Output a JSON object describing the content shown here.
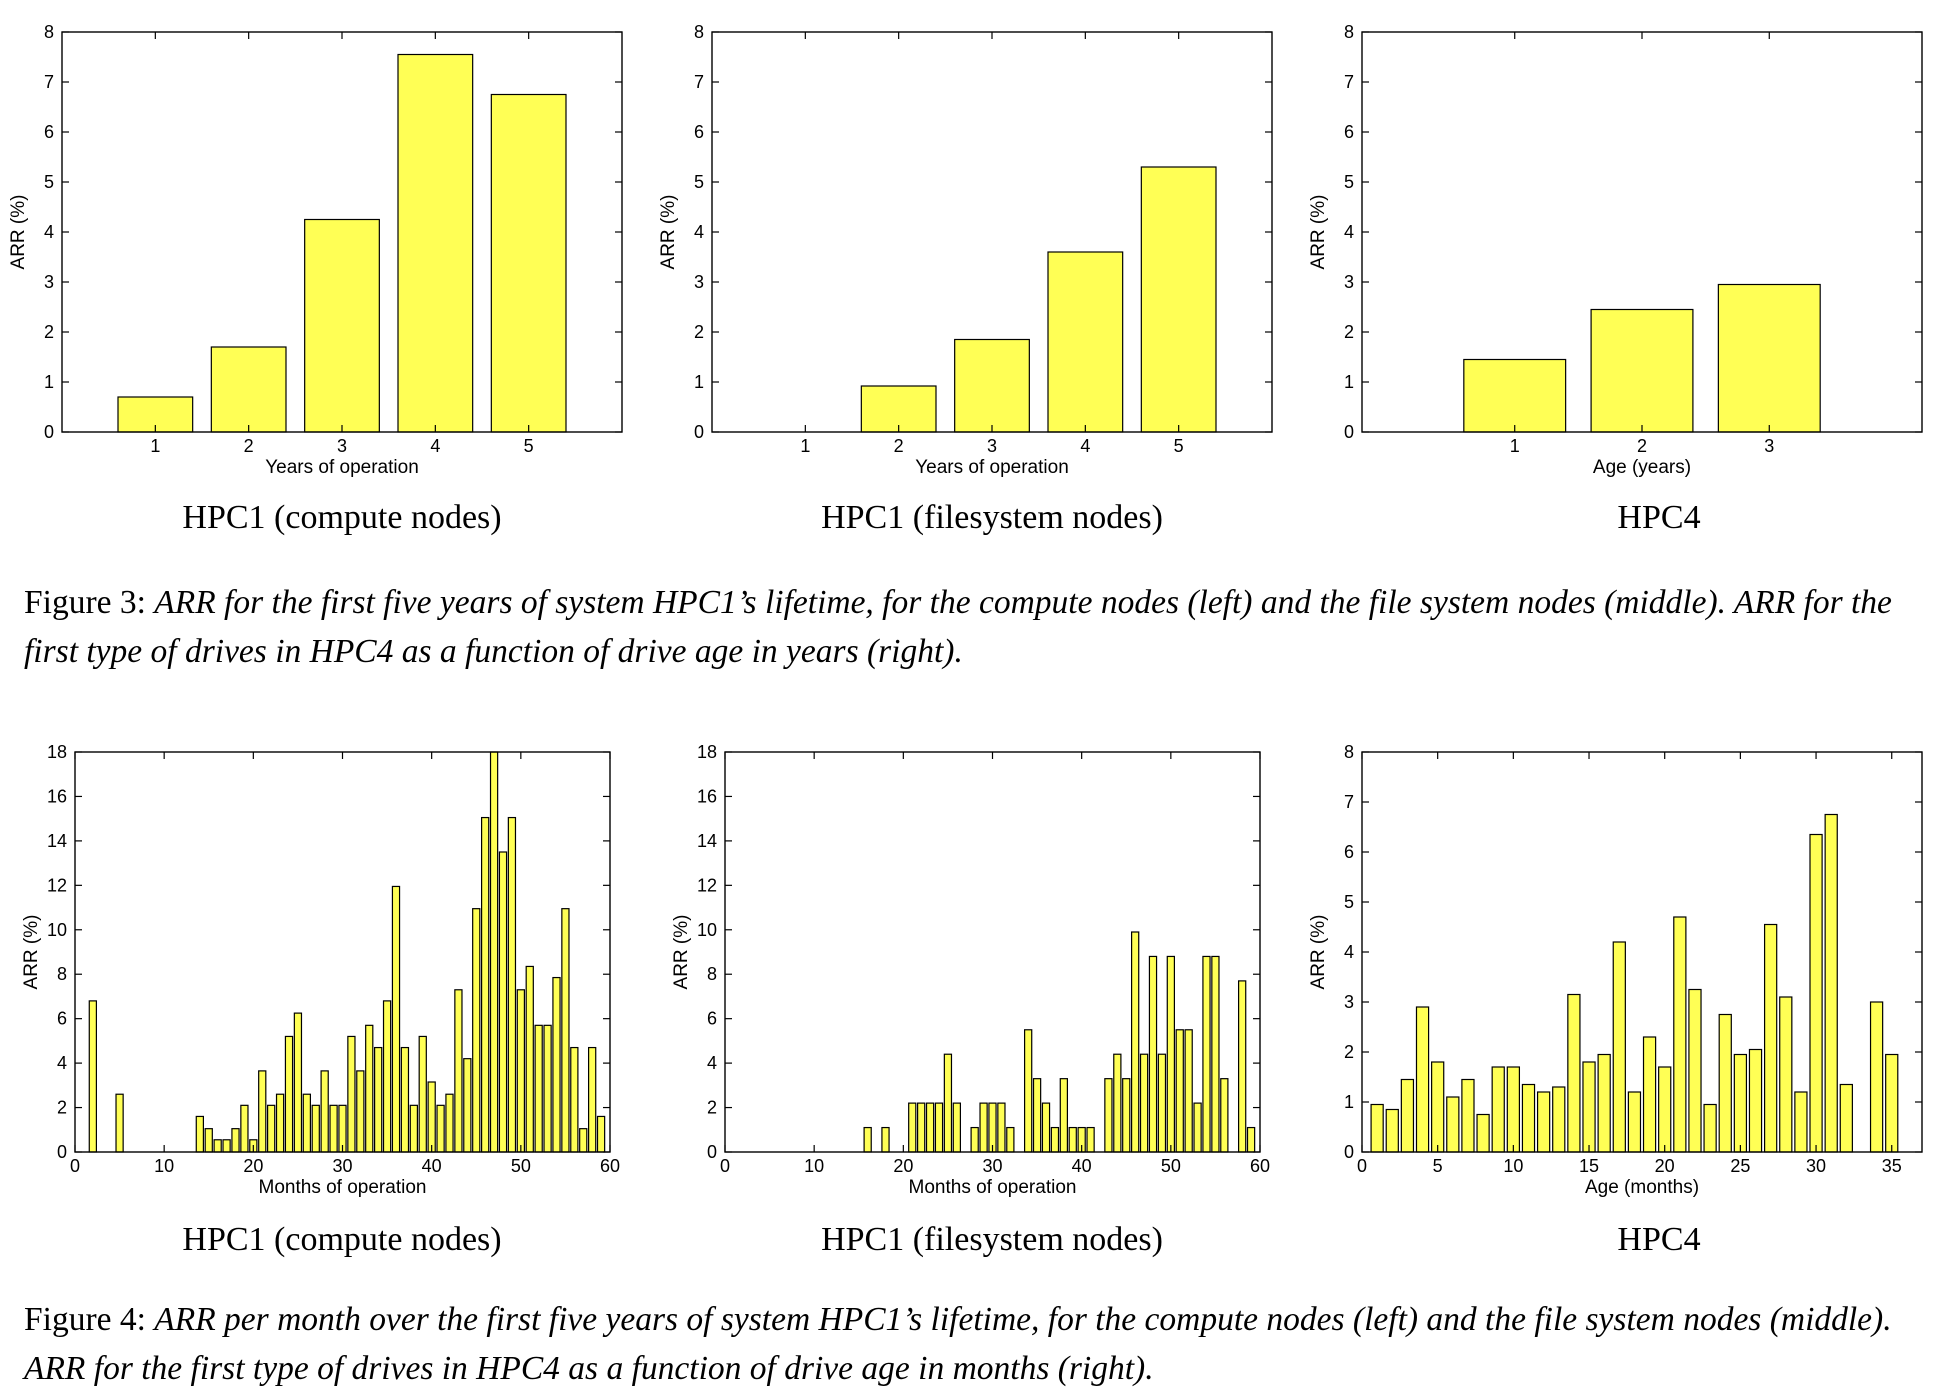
{
  "figures": [
    {
      "panels": [
        {
          "title": "HPC1 (compute nodes)",
          "chart_data": {
            "type": "bar",
            "x": [
              1,
              2,
              3,
              4,
              5
            ],
            "values": [
              0.7,
              1.7,
              4.25,
              7.55,
              6.75
            ],
            "xlabel": "Years of operation",
            "ylabel": "ARR (%)",
            "xlim": [
              -0.0,
              6.0
            ],
            "ylim": [
              0,
              8
            ],
            "xticks": [
              1,
              2,
              3,
              4,
              5
            ],
            "yticks": [
              0,
              1,
              2,
              3,
              4,
              5,
              6,
              7,
              8
            ],
            "bar_width": 0.8,
            "grid": false,
            "color": "#ffff55"
          }
        },
        {
          "title": "HPC1 (filesystem nodes)",
          "chart_data": {
            "type": "bar",
            "x": [
              1,
              2,
              3,
              4,
              5
            ],
            "values": [
              0,
              0.92,
              1.85,
              3.6,
              5.3
            ],
            "xlabel": "Years of operation",
            "ylabel": "ARR (%)",
            "xlim": [
              -0.0,
              6.0
            ],
            "ylim": [
              0,
              8
            ],
            "xticks": [
              1,
              2,
              3,
              4,
              5
            ],
            "yticks": [
              0,
              1,
              2,
              3,
              4,
              5,
              6,
              7,
              8
            ],
            "bar_width": 0.8,
            "grid": false,
            "color": "#ffff55"
          }
        },
        {
          "title": "HPC4",
          "chart_data": {
            "type": "bar",
            "x": [
              1,
              2,
              3
            ],
            "values": [
              1.45,
              2.45,
              2.95
            ],
            "xlabel": "Age (years)",
            "ylabel": "ARR (%)",
            "xlim": [
              -0.2,
              4.2
            ],
            "ylim": [
              0,
              8
            ],
            "xticks": [
              1,
              2,
              3
            ],
            "yticks": [
              0,
              1,
              2,
              3,
              4,
              5,
              6,
              7,
              8
            ],
            "bar_width": 0.8,
            "grid": false,
            "color": "#ffff55"
          }
        }
      ],
      "caption": {
        "lead": "Figure 3: ",
        "text": "ARR for the first five years of system HPC1’s lifetime, for the compute nodes (left) and the file system nodes (middle). ARR for the first type of drives in HPC4 as a function of drive age in years (right)."
      }
    },
    {
      "panels": [
        {
          "title": "HPC1 (compute nodes)",
          "chart_data": {
            "type": "bar",
            "x": [
              1,
              2,
              3,
              4,
              5,
              6,
              7,
              8,
              9,
              10,
              11,
              12,
              13,
              14,
              15,
              16,
              17,
              18,
              19,
              20,
              21,
              22,
              23,
              24,
              25,
              26,
              27,
              28,
              29,
              30,
              31,
              32,
              33,
              34,
              35,
              36,
              37,
              38,
              39,
              40,
              41,
              42,
              43,
              44,
              45,
              46,
              47,
              48,
              49,
              50,
              51,
              52,
              53,
              54,
              55,
              56,
              57,
              58,
              59,
              60
            ],
            "values": [
              0,
              6.8,
              0,
              0,
              2.6,
              0,
              0,
              0,
              0,
              0,
              0,
              0,
              0,
              1.6,
              1.05,
              0.55,
              0.55,
              1.05,
              2.1,
              0.55,
              3.65,
              2.1,
              2.6,
              5.2,
              6.25,
              2.6,
              2.1,
              3.65,
              2.1,
              2.1,
              5.2,
              3.65,
              5.7,
              4.7,
              6.8,
              11.95,
              4.7,
              2.1,
              5.2,
              3.15,
              2.1,
              2.6,
              7.3,
              4.2,
              10.95,
              15.05,
              18.0,
              13.5,
              15.05,
              7.3,
              8.35,
              5.7,
              5.7,
              7.85,
              10.95,
              4.7,
              1.05,
              4.7,
              1.6,
              0
            ],
            "xlabel": "Months of operation",
            "ylabel": "ARR (%)",
            "xlim": [
              0,
              60
            ],
            "ylim": [
              0,
              18
            ],
            "xticks": [
              0,
              10,
              20,
              30,
              40,
              50,
              60
            ],
            "yticks": [
              0,
              2,
              4,
              6,
              8,
              10,
              12,
              14,
              16,
              18
            ],
            "bar_width": 0.8,
            "grid": false,
            "color": "#ffff55"
          }
        },
        {
          "title": "HPC1 (filesystem nodes)",
          "chart_data": {
            "type": "bar",
            "x": [
              1,
              2,
              3,
              4,
              5,
              6,
              7,
              8,
              9,
              10,
              11,
              12,
              13,
              14,
              15,
              16,
              17,
              18,
              19,
              20,
              21,
              22,
              23,
              24,
              25,
              26,
              27,
              28,
              29,
              30,
              31,
              32,
              33,
              34,
              35,
              36,
              37,
              38,
              39,
              40,
              41,
              42,
              43,
              44,
              45,
              46,
              47,
              48,
              49,
              50,
              51,
              52,
              53,
              54,
              55,
              56,
              57,
              58,
              59,
              60
            ],
            "values": [
              0,
              0,
              0,
              0,
              0,
              0,
              0,
              0,
              0,
              0,
              0,
              0,
              0,
              0,
              0,
              1.1,
              0,
              1.1,
              0,
              0,
              2.2,
              2.2,
              2.2,
              2.2,
              4.4,
              2.2,
              0,
              1.1,
              2.2,
              2.2,
              2.2,
              1.1,
              0,
              5.5,
              3.3,
              2.2,
              1.1,
              3.3,
              1.1,
              1.1,
              1.1,
              0,
              3.3,
              4.4,
              3.3,
              9.9,
              4.4,
              8.8,
              4.4,
              8.8,
              5.5,
              5.5,
              2.2,
              8.8,
              8.8,
              3.3,
              0,
              7.7,
              1.1,
              0
            ],
            "xlabel": "Months of operation",
            "ylabel": "ARR (%)",
            "xlim": [
              0,
              60
            ],
            "ylim": [
              0,
              18
            ],
            "xticks": [
              0,
              10,
              20,
              30,
              40,
              50,
              60
            ],
            "yticks": [
              0,
              2,
              4,
              6,
              8,
              10,
              12,
              14,
              16,
              18
            ],
            "bar_width": 0.8,
            "grid": false,
            "color": "#ffff55"
          }
        },
        {
          "title": "HPC4",
          "chart_data": {
            "type": "bar",
            "x": [
              1,
              2,
              3,
              4,
              5,
              6,
              7,
              8,
              9,
              10,
              11,
              12,
              13,
              14,
              15,
              16,
              17,
              18,
              19,
              20,
              21,
              22,
              23,
              24,
              25,
              26,
              27,
              28,
              29,
              30,
              31,
              32,
              33,
              34,
              35
            ],
            "values": [
              0.95,
              0.85,
              1.45,
              2.9,
              1.8,
              1.1,
              1.45,
              0.75,
              1.7,
              1.7,
              1.35,
              1.2,
              1.3,
              3.15,
              1.8,
              1.95,
              4.2,
              1.2,
              2.3,
              1.7,
              4.7,
              3.25,
              0.95,
              2.75,
              1.95,
              2.05,
              4.55,
              3.1,
              1.2,
              6.35,
              6.75,
              1.35,
              0,
              3.0,
              1.95
            ],
            "xlabel": "Age (months)",
            "ylabel": "ARR (%)",
            "xlim": [
              0,
              37
            ],
            "ylim": [
              0,
              8
            ],
            "xticks": [
              0,
              5,
              10,
              15,
              20,
              25,
              30,
              35
            ],
            "yticks": [
              0,
              1,
              2,
              3,
              4,
              5,
              6,
              7,
              8
            ],
            "bar_width": 0.8,
            "grid": false,
            "color": "#ffff55"
          }
        }
      ],
      "caption": {
        "lead": "Figure 4: ",
        "text": "ARR per month over the first five years of system HPC1’s lifetime, for the compute nodes (left) and the file system nodes (middle). ARR for the first type of drives in HPC4 as a function of drive age in months (right)."
      }
    }
  ]
}
